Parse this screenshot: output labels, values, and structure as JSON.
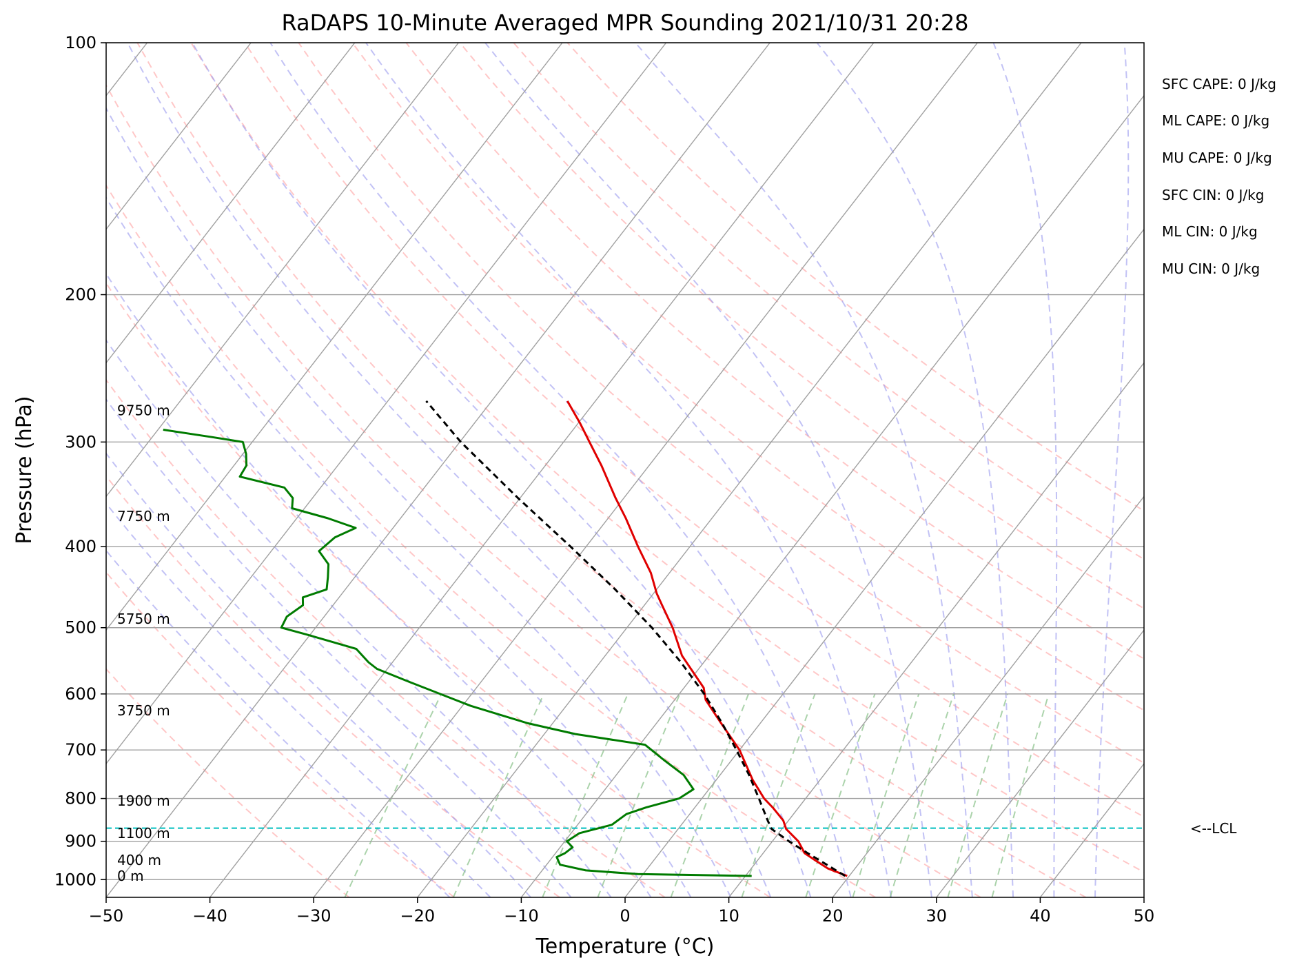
{
  "chart_data": {
    "type": "line",
    "title": "RaDAPS 10-Minute Averaged MPR Sounding 2021/10/31 20:28",
    "xlabel": "Temperature (°C)",
    "ylabel": "Pressure (hPa)",
    "xlim": [
      -50,
      50
    ],
    "ylim": [
      1050,
      100
    ],
    "y_scale": "log",
    "skew": true,
    "grid": true,
    "x_ticks": [
      -50,
      -40,
      -30,
      -20,
      -10,
      0,
      10,
      20,
      30,
      40,
      50
    ],
    "x_tick_labels": [
      "−50",
      "−40",
      "−30",
      "−20",
      "−10",
      "0",
      "10",
      "20",
      "30",
      "40",
      "50"
    ],
    "y_ticks": [
      1000,
      900,
      800,
      700,
      600,
      500,
      400,
      300,
      200,
      100
    ],
    "y_tick_labels": [
      "1000",
      "900",
      "800",
      "700",
      "600",
      "500",
      "400",
      "300",
      "200",
      "100"
    ],
    "series": [
      {
        "role": "temperature",
        "color": "#e00000",
        "style": "solid",
        "points": [
          {
            "p": 990,
            "t": 19.8
          },
          {
            "p": 970,
            "t": 17.4
          },
          {
            "p": 950,
            "t": 15.7
          },
          {
            "p": 930,
            "t": 14.0
          },
          {
            "p": 900,
            "t": 12.5
          },
          {
            "p": 870,
            "t": 10.4
          },
          {
            "p": 850,
            "t": 9.5
          },
          {
            "p": 820,
            "t": 7.5
          },
          {
            "p": 800,
            "t": 6.0
          },
          {
            "p": 760,
            "t": 3.5
          },
          {
            "p": 700,
            "t": 0.0
          },
          {
            "p": 650,
            "t": -3.8
          },
          {
            "p": 610,
            "t": -7.0
          },
          {
            "p": 590,
            "t": -8.1
          },
          {
            "p": 540,
            "t": -12.6
          },
          {
            "p": 500,
            "t": -15.6
          },
          {
            "p": 470,
            "t": -18.3
          },
          {
            "p": 455,
            "t": -19.7
          },
          {
            "p": 430,
            "t": -21.8
          },
          {
            "p": 400,
            "t": -25.0
          },
          {
            "p": 370,
            "t": -28.3
          },
          {
            "p": 350,
            "t": -30.8
          },
          {
            "p": 320,
            "t": -34.6
          },
          {
            "p": 300,
            "t": -37.5
          },
          {
            "p": 285,
            "t": -39.8
          },
          {
            "p": 268,
            "t": -42.7
          }
        ]
      },
      {
        "role": "dewpoint",
        "color": "#007b00",
        "style": "solid",
        "points": [
          {
            "p": 990,
            "t": 10.6
          },
          {
            "p": 985,
            "t": -0.5
          },
          {
            "p": 975,
            "t": -5.8
          },
          {
            "p": 960,
            "t": -8.7
          },
          {
            "p": 940,
            "t": -9.6
          },
          {
            "p": 930,
            "t": -9.1
          },
          {
            "p": 915,
            "t": -8.8
          },
          {
            "p": 900,
            "t": -9.8
          },
          {
            "p": 880,
            "t": -9.2
          },
          {
            "p": 860,
            "t": -6.7
          },
          {
            "p": 835,
            "t": -6.1
          },
          {
            "p": 820,
            "t": -4.7
          },
          {
            "p": 800,
            "t": -2.2
          },
          {
            "p": 780,
            "t": -1.5
          },
          {
            "p": 750,
            "t": -3.5
          },
          {
            "p": 720,
            "t": -6.5
          },
          {
            "p": 690,
            "t": -9.5
          },
          {
            "p": 670,
            "t": -17.0
          },
          {
            "p": 650,
            "t": -22.5
          },
          {
            "p": 620,
            "t": -29.2
          },
          {
            "p": 580,
            "t": -37.0
          },
          {
            "p": 560,
            "t": -41.0
          },
          {
            "p": 550,
            "t": -42.3
          },
          {
            "p": 530,
            "t": -44.5
          },
          {
            "p": 510,
            "t": -50.2
          },
          {
            "p": 500,
            "t": -53.3
          },
          {
            "p": 485,
            "t": -53.6
          },
          {
            "p": 470,
            "t": -52.9
          },
          {
            "p": 460,
            "t": -53.5
          },
          {
            "p": 450,
            "t": -51.8
          },
          {
            "p": 435,
            "t": -52.6
          },
          {
            "p": 420,
            "t": -53.5
          },
          {
            "p": 405,
            "t": -55.4
          },
          {
            "p": 390,
            "t": -54.9
          },
          {
            "p": 380,
            "t": -53.6
          },
          {
            "p": 370,
            "t": -57.0
          },
          {
            "p": 360,
            "t": -61.2
          },
          {
            "p": 350,
            "t": -61.9
          },
          {
            "p": 340,
            "t": -63.5
          },
          {
            "p": 330,
            "t": -68.6
          },
          {
            "p": 320,
            "t": -68.8
          },
          {
            "p": 310,
            "t": -69.7
          },
          {
            "p": 300,
            "t": -70.9
          },
          {
            "p": 296,
            "t": -74.2
          },
          {
            "p": 290,
            "t": -79.5
          }
        ]
      },
      {
        "role": "parcel",
        "color": "#000000",
        "style": "dashed",
        "points": [
          {
            "p": 990,
            "t": 19.6
          },
          {
            "p": 960,
            "t": 17.0
          },
          {
            "p": 930,
            "t": 14.3
          },
          {
            "p": 900,
            "t": 11.6
          },
          {
            "p": 870,
            "t": 9.0
          },
          {
            "p": 850,
            "t": 8.0
          },
          {
            "p": 800,
            "t": 5.5
          },
          {
            "p": 750,
            "t": 2.8
          },
          {
            "p": 700,
            "t": -0.3
          },
          {
            "p": 650,
            "t": -3.7
          },
          {
            "p": 600,
            "t": -7.6
          },
          {
            "p": 550,
            "t": -12.2
          },
          {
            "p": 500,
            "t": -17.6
          },
          {
            "p": 450,
            "t": -24.0
          },
          {
            "p": 400,
            "t": -31.5
          },
          {
            "p": 350,
            "t": -40.2
          },
          {
            "p": 300,
            "t": -49.9
          },
          {
            "p": 268,
            "t": -56.3
          }
        ]
      }
    ],
    "lcl_pressure": 868,
    "lcl_label": "<--LCL",
    "height_labels": [
      {
        "p": 990,
        "label": "0 m"
      },
      {
        "p": 948,
        "label": "400 m"
      },
      {
        "p": 880,
        "label": "1100 m"
      },
      {
        "p": 805,
        "label": "1900 m"
      },
      {
        "p": 628,
        "label": "3750 m"
      },
      {
        "p": 488,
        "label": "5750 m"
      },
      {
        "p": 368,
        "label": "7750 m"
      },
      {
        "p": 275,
        "label": "9750 m"
      }
    ],
    "reference_lines": {
      "isotherms_color": "#a0a0a0",
      "dry_adiabats_color": "#ff9999",
      "moist_adiabats_color": "#9999ee",
      "mixing_ratio_color": "#88c088",
      "lcl_color": "#00bfbf"
    }
  },
  "stats": {
    "sfc_cape": "SFC CAPE: 0 J/kg",
    "ml_cape": "ML CAPE: 0 J/kg",
    "mu_cape": "MU CAPE: 0 J/kg",
    "sfc_cin": "SFC CIN: 0 J/kg",
    "ml_cin": "ML CIN: 0 J/kg",
    "mu_cin": "MU CIN: 0 J/kg"
  }
}
